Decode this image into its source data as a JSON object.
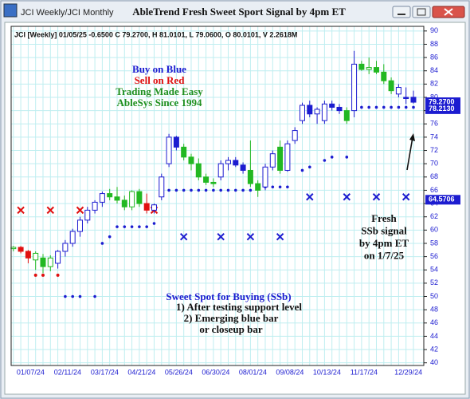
{
  "window_title": "JCI Weekly/JCI Monthly",
  "chart_data": {
    "type": "candlestick",
    "title": "AbleTrend Fresh Sweet Sport Signal by 4pm ET",
    "info": "JCI [Weekly] 01/05/25 -0.6500 C 79.2700, H 81.0101, L 79.0600, O 80.0101, V 2.2618M",
    "categories": [
      null,
      null,
      "01/07/24",
      null,
      null,
      null,
      null,
      "02/11/24",
      null,
      null,
      null,
      null,
      "03/17/24",
      null,
      null,
      null,
      null,
      "04/21/24",
      null,
      null,
      null,
      null,
      "05/26/24",
      null,
      null,
      null,
      null,
      "06/30/24",
      null,
      null,
      null,
      null,
      "08/01/24",
      null,
      null,
      null,
      null,
      "09/08/24",
      null,
      null,
      null,
      null,
      "10/13/24",
      null,
      null,
      null,
      null,
      "11/17/24",
      null,
      null,
      null,
      null,
      null,
      "12/29/24",
      null
    ],
    "open": [
      57.2,
      57.4,
      56.8,
      55.5,
      55.8,
      54.5,
      55.0,
      56.8,
      58.0,
      59.8,
      61.5,
      63.0,
      64.2,
      65.5,
      65.0,
      64.5,
      63.5,
      65.8,
      64.0,
      63.0,
      65.0,
      70.0,
      74.0,
      72.5,
      71.0,
      70.0,
      68.0,
      67.2,
      68.0,
      70.0,
      70.5,
      69.8,
      69.0,
      67.0,
      66.5,
      69.5,
      72.5,
      69.0,
      73.5,
      76.5,
      78.8,
      77.5,
      76.5,
      79.0,
      78.5,
      78.0,
      78.0,
      85.0,
      84.2,
      84.5,
      83.8,
      82.5,
      80.5,
      80.0,
      80.0101
    ],
    "high": [
      57.6,
      57.6,
      57.0,
      56.8,
      56.4,
      56.2,
      57.0,
      58.5,
      60.2,
      62.0,
      63.5,
      64.5,
      65.8,
      66.2,
      66.5,
      65.2,
      66.0,
      66.2,
      65.5,
      64.0,
      68.5,
      74.5,
      74.2,
      73.0,
      71.5,
      70.8,
      68.5,
      67.8,
      70.5,
      71.0,
      71.0,
      70.2,
      73.5,
      67.5,
      70.0,
      72.0,
      73.5,
      73.5,
      75.5,
      79.2,
      79.5,
      78.5,
      79.5,
      79.5,
      79.0,
      78.5,
      87.0,
      85.5,
      86.0,
      85.5,
      85.0,
      83.0,
      82.0,
      81.5,
      81.0101
    ],
    "low": [
      56.8,
      56.5,
      55.0,
      54.0,
      53.5,
      53.8,
      54.2,
      56.0,
      57.5,
      59.0,
      61.0,
      62.5,
      63.5,
      64.5,
      64.0,
      63.0,
      63.0,
      63.5,
      62.5,
      62.5,
      64.5,
      69.5,
      72.0,
      70.5,
      69.0,
      67.5,
      66.8,
      66.5,
      67.5,
      69.0,
      69.5,
      68.5,
      66.5,
      65.0,
      66.0,
      69.0,
      68.5,
      68.8,
      73.0,
      76.0,
      77.0,
      76.0,
      76.0,
      78.0,
      77.5,
      76.0,
      77.0,
      84.0,
      83.5,
      83.5,
      82.0,
      80.5,
      80.0,
      79.0,
      79.06
    ],
    "close": [
      57.4,
      56.8,
      55.8,
      56.5,
      54.5,
      55.8,
      56.8,
      58.0,
      59.8,
      61.5,
      63.0,
      64.2,
      65.5,
      65.0,
      64.5,
      63.5,
      65.8,
      64.0,
      63.0,
      63.8,
      68.0,
      74.0,
      72.5,
      71.0,
      70.0,
      68.0,
      67.2,
      67.0,
      70.0,
      70.5,
      69.8,
      69.0,
      67.0,
      66.0,
      69.5,
      71.5,
      69.0,
      73.0,
      75.0,
      78.8,
      77.5,
      78.2,
      79.0,
      78.5,
      78.0,
      76.5,
      85.0,
      84.2,
      84.5,
      83.8,
      82.5,
      81.0,
      81.5,
      80.0,
      79.27
    ],
    "colors": [
      "#22b822",
      "#e01010",
      "#e01010",
      "#22b822",
      "#22b822",
      "#22b822",
      "#1c1cd0",
      "#1c1cd0",
      "#1c1cd0",
      "#1c1cd0",
      "#1c1cd0",
      "#1c1cd0",
      "#1c1cd0",
      "#22b822",
      "#22b822",
      "#22b822",
      "#22b822",
      "#22b822",
      "#e01010",
      "#1c1cd0",
      "#1c1cd0",
      "#1c1cd0",
      "#1c1cd0",
      "#22b822",
      "#22b822",
      "#22b822",
      "#22b822",
      "#22b822",
      "#1c1cd0",
      "#1c1cd0",
      "#1c1cd0",
      "#1c1cd0",
      "#22b822",
      "#22b822",
      "#1c1cd0",
      "#1c1cd0",
      "#22b822",
      "#1c1cd0",
      "#1c1cd0",
      "#1c1cd0",
      "#1c1cd0",
      "#1c1cd0",
      "#1c1cd0",
      "#1c1cd0",
      "#1c1cd0",
      "#22b822",
      "#1c1cd0",
      "#22b822",
      "#22b822",
      "#22b822",
      "#22b822",
      "#22b822",
      "#1c1cd0",
      "#1c1cd0",
      "#1c1cd0"
    ],
    "stops": {
      "color": "#1c1cd0",
      "values": [
        null,
        null,
        null,
        null,
        null,
        null,
        null,
        50,
        50,
        50,
        null,
        50,
        58,
        59,
        60.5,
        60.5,
        60.5,
        60.5,
        60.5,
        61,
        null,
        66,
        66,
        66,
        66,
        66,
        66,
        66,
        66,
        66,
        66,
        66,
        66,
        66.5,
        66.5,
        66.5,
        66.5,
        66.5,
        null,
        69,
        69.5,
        null,
        70.5,
        71,
        null,
        71,
        null,
        78.5,
        78.5,
        78.5,
        78.5,
        78.5,
        78.5,
        78.5,
        78.5
      ]
    },
    "red_x": {
      "color": "#e01010",
      "values": [
        null,
        63,
        null,
        null,
        null,
        63,
        null,
        null,
        null,
        63,
        null,
        null,
        null,
        null,
        null,
        null,
        null,
        null,
        null,
        63,
        null,
        null,
        null,
        null,
        null,
        null,
        null,
        null,
        null,
        null,
        null,
        null,
        null,
        null,
        null,
        null,
        null,
        null,
        null,
        null,
        null,
        null,
        null,
        null,
        null,
        null,
        null,
        null,
        null,
        null,
        null,
        null,
        null,
        null,
        null
      ]
    },
    "blue_x": {
      "color": "#1c1cd0",
      "values": [
        null,
        null,
        null,
        null,
        null,
        null,
        null,
        null,
        null,
        null,
        null,
        null,
        null,
        null,
        null,
        null,
        null,
        null,
        null,
        null,
        null,
        null,
        null,
        59,
        null,
        null,
        null,
        null,
        59,
        null,
        null,
        null,
        59,
        null,
        null,
        null,
        59,
        null,
        null,
        null,
        65,
        null,
        null,
        null,
        null,
        65,
        null,
        null,
        null,
        65,
        null,
        null,
        null,
        65,
        null
      ]
    },
    "red_dots": {
      "color": "#e01010",
      "values": [
        null,
        null,
        null,
        53.2,
        53.2,
        null,
        53.2,
        null,
        null,
        null,
        null,
        null,
        null,
        null,
        null,
        null,
        null,
        null,
        null,
        null,
        null,
        null,
        null,
        null,
        null,
        null,
        null,
        null,
        null,
        null,
        null,
        null,
        null,
        null,
        null,
        null,
        null,
        null,
        null,
        null,
        null,
        null,
        null,
        null,
        null,
        null,
        null,
        null,
        null,
        null,
        null,
        null,
        null,
        null,
        null
      ]
    },
    "price_tags": [
      {
        "value": 79.27,
        "label": "79.2700"
      },
      {
        "value": 78.213,
        "label": "78.2130"
      },
      {
        "value": 64.5706,
        "label": "64.5706"
      }
    ],
    "ylim": [
      39.6,
      90.7
    ],
    "yticks": [
      40,
      42,
      44,
      46,
      48,
      50,
      52,
      54,
      56,
      58,
      60,
      62,
      64,
      66,
      68,
      70,
      72,
      74,
      76,
      78,
      80,
      82,
      84,
      86,
      88,
      90
    ],
    "grid": true,
    "annotations": {
      "legend_text": [
        {
          "text": "Buy on Blue",
          "color": "#1c1cd0"
        },
        {
          "text": "Sell on Red",
          "color": "#e01010"
        },
        {
          "text": "Trading Made Easy",
          "color": "#1f8f1f"
        },
        {
          "text": "AbleSys Since 1994",
          "color": "#1f8f1f"
        }
      ],
      "fresh": [
        "Fresh",
        "SSb signal",
        "by 4pm ET",
        "on 1/7/25"
      ],
      "sweet_spot": [
        "Sweet Spot for Buying (SSb)",
        "1) After testing support level",
        "2) Emerging blue bar",
        "or closeup bar"
      ]
    }
  }
}
